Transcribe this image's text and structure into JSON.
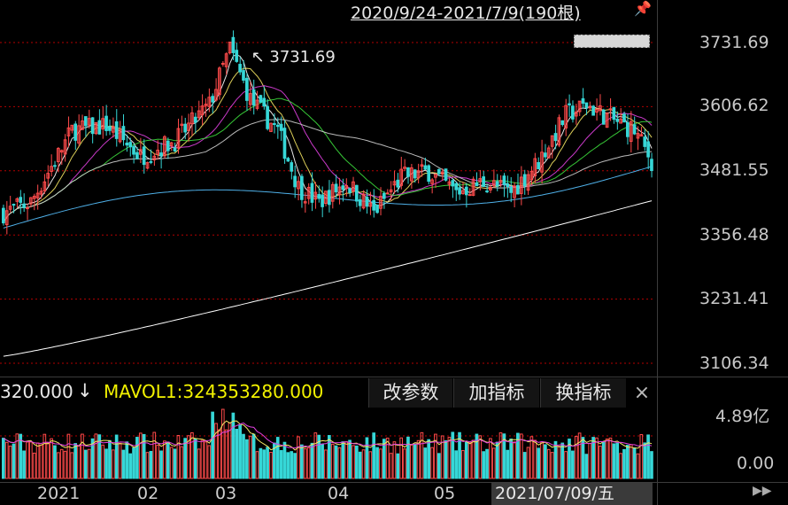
{
  "header": {
    "range_label": "2020/9/24-2021/7/9(190根)",
    "pin_icon": "pin-icon"
  },
  "price_axis": {
    "ticks": [
      "3731.69",
      "3606.62",
      "3481.55",
      "3356.48",
      "3231.41",
      "3106.34"
    ]
  },
  "max_annotation": "3731.69",
  "volume_header": {
    "volume_value": "320.000",
    "arrow": "↓",
    "mavol": "MAVOL1:324353280.000",
    "buttons": [
      "改参数",
      "加指标",
      "换指标"
    ],
    "close_icon": "×"
  },
  "volume_axis": {
    "ticks": [
      "4.89亿",
      "0.00"
    ]
  },
  "time_axis": {
    "labels": [
      "2021",
      "02",
      "03",
      "04",
      "05"
    ],
    "crosshair_date": "2021/07/09/五"
  },
  "colors": {
    "up": "#ff4b4b",
    "down": "#36d7d7",
    "ma5": "#ffffff",
    "ma10": "#f5e663",
    "ma20": "#e040e0",
    "ma30": "#3cdc3c",
    "ma60": "#cfcfcf",
    "ma120": "#4fb0e8",
    "ma250": "#ffffff",
    "background": "#000000",
    "grid": "#b40000"
  },
  "chart_data": {
    "type": "candlestick",
    "y_range": [
      3106.34,
      3731.69
    ],
    "max_high": 3731.69,
    "x_range": [
      "2020-09-24",
      "2021-07-09"
    ],
    "bars": 190,
    "volume_y_range": [
      0,
      4.89
    ],
    "volume_unit": "亿"
  }
}
